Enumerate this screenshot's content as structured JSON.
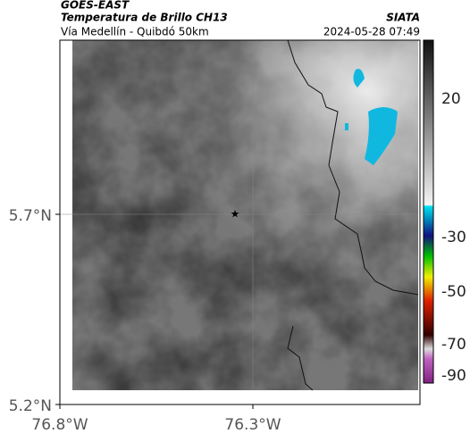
{
  "header": {
    "source": "GOES-EAST",
    "title": "Temperatura de Brillo CH13",
    "org": "SIATA",
    "subtitle": "Vía Medellín - Quibdó 50km",
    "datetime": "2024-05-28 07:49"
  },
  "map": {
    "lat_labels": [
      "5.7°N",
      "5.2°N"
    ],
    "lon_labels": [
      "76.8°W",
      "76.3°W"
    ]
  },
  "colorbar": {
    "labels": [
      "20",
      "-30",
      "-50",
      "-70",
      "-90"
    ]
  }
}
